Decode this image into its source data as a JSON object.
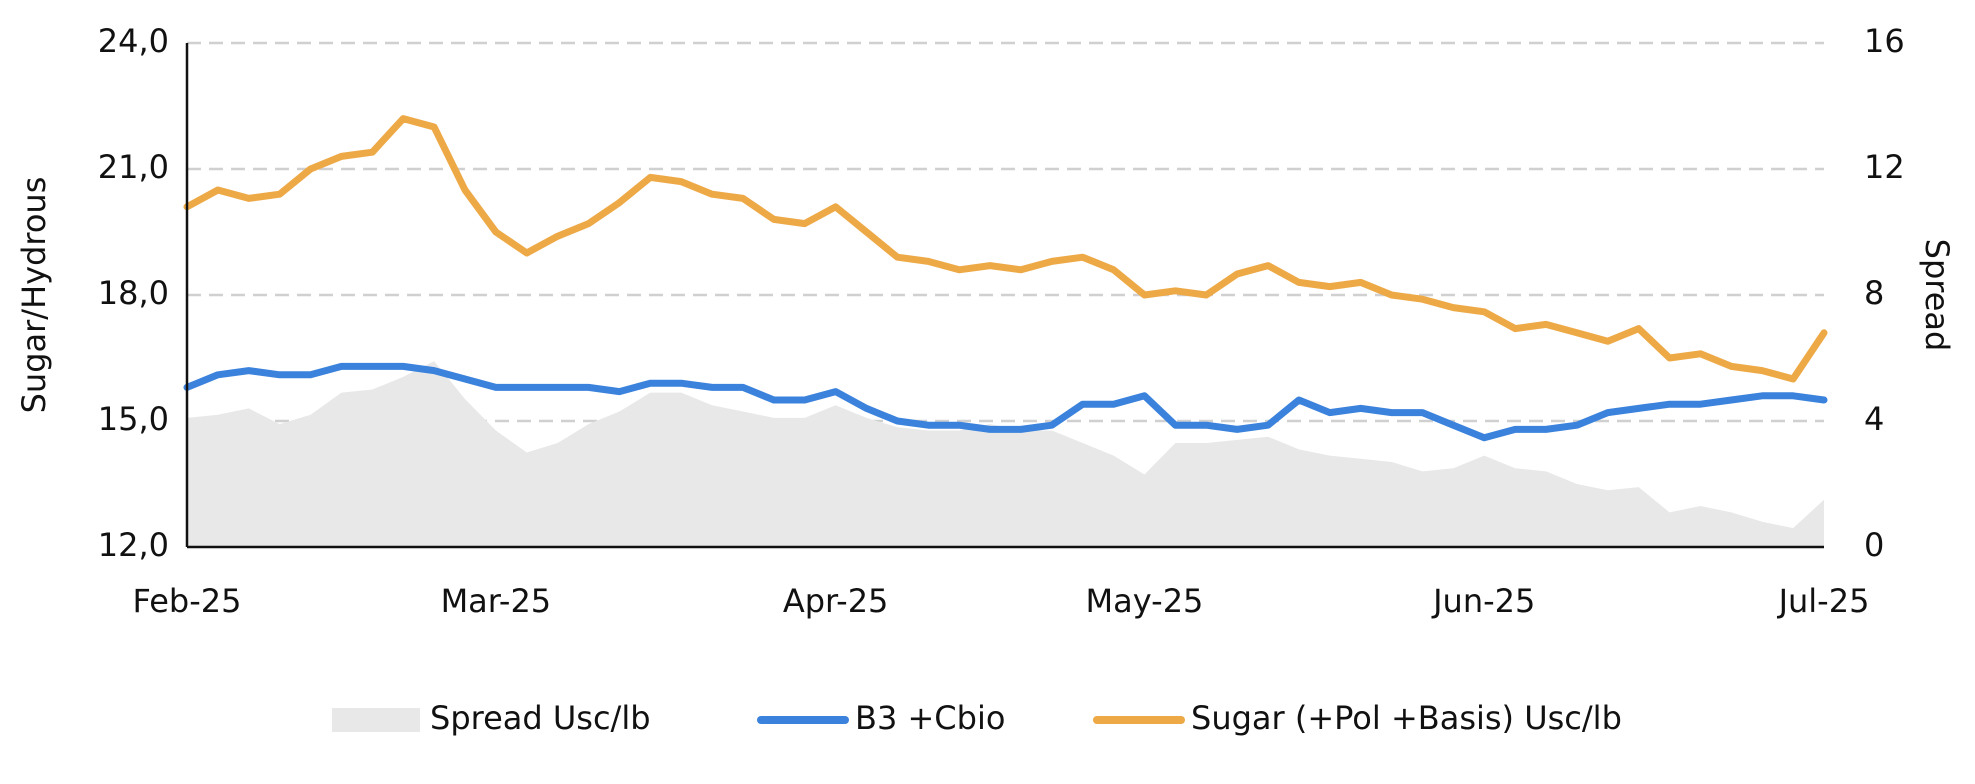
{
  "chart_data": {
    "type": "line",
    "y_label": "Sugar/Hydrous",
    "y2_label": "Spread",
    "categories": [
      "Feb-25",
      null,
      null,
      null,
      null,
      null,
      null,
      null,
      null,
      null,
      "Mar-25",
      null,
      null,
      null,
      null,
      null,
      null,
      null,
      null,
      null,
      null,
      "Apr-25",
      null,
      null,
      null,
      null,
      null,
      null,
      null,
      null,
      null,
      "May-25",
      null,
      null,
      null,
      null,
      null,
      null,
      null,
      null,
      null,
      null,
      "Jun-25",
      null,
      null,
      null,
      null,
      null,
      null,
      null,
      null,
      null,
      null,
      "Jul-25"
    ],
    "ylim": [
      12,
      24
    ],
    "yticks": [
      {
        "value": 12,
        "label": "12,0"
      },
      {
        "value": 15,
        "label": "15,0"
      },
      {
        "value": 18,
        "label": "18,0"
      },
      {
        "value": 21,
        "label": "21,0"
      },
      {
        "value": 24,
        "label": "24,0"
      }
    ],
    "y2lim": [
      0,
      16
    ],
    "y2ticks": [
      0,
      4,
      8,
      12,
      16
    ],
    "grid": true,
    "legend": "bottom",
    "series": [
      {
        "name": "Spread Usc/lb",
        "type": "area",
        "axis": "y2",
        "color": "#e8e8e8",
        "values": [
          4.1,
          4.2,
          4.4,
          3.9,
          4.2,
          4.9,
          5.0,
          5.4,
          5.9,
          4.7,
          3.7,
          3.0,
          3.3,
          3.9,
          4.3,
          4.9,
          4.9,
          4.5,
          4.3,
          4.1,
          4.1,
          4.5,
          4.1,
          3.8,
          3.7,
          3.7,
          3.9,
          3.7,
          3.7,
          3.3,
          2.9,
          2.3,
          3.3,
          3.3,
          3.4,
          3.5,
          3.1,
          2.9,
          2.8,
          2.7,
          2.4,
          2.5,
          2.9,
          2.5,
          2.4,
          2.0,
          1.8,
          1.9,
          1.1,
          1.3,
          1.1,
          0.8,
          0.6,
          1.5
        ]
      },
      {
        "name": "B3 +Cbio",
        "type": "line",
        "color": "#3b82dc",
        "values": [
          15.8,
          16.1,
          16.2,
          16.1,
          16.1,
          16.3,
          16.3,
          16.3,
          16.2,
          16.0,
          15.8,
          15.8,
          15.8,
          15.8,
          15.7,
          15.9,
          15.9,
          15.8,
          15.8,
          15.5,
          15.5,
          15.7,
          15.3,
          15.0,
          14.9,
          14.9,
          14.8,
          14.8,
          14.9,
          15.4,
          15.4,
          15.6,
          14.9,
          14.9,
          14.8,
          14.9,
          15.5,
          15.2,
          15.3,
          15.2,
          15.2,
          14.9,
          14.6,
          14.8,
          14.8,
          14.9,
          15.2,
          15.3,
          15.4,
          15.4,
          15.5,
          15.6,
          15.6,
          15.5
        ]
      },
      {
        "name": "Sugar (+Pol +Basis) Usc/lb",
        "type": "line",
        "color": "#eea947",
        "values": [
          20.1,
          20.5,
          20.3,
          20.4,
          21.0,
          21.3,
          21.4,
          22.2,
          22.0,
          20.5,
          19.5,
          19.0,
          19.4,
          19.7,
          20.2,
          20.8,
          20.7,
          20.4,
          20.3,
          19.8,
          19.7,
          20.1,
          19.5,
          18.9,
          18.8,
          18.6,
          18.7,
          18.6,
          18.8,
          18.9,
          18.6,
          18.0,
          18.1,
          18.0,
          18.5,
          18.7,
          18.3,
          18.2,
          18.3,
          18.0,
          17.9,
          17.7,
          17.6,
          17.2,
          17.3,
          17.1,
          16.9,
          17.2,
          16.5,
          16.6,
          16.3,
          16.2,
          16.0,
          17.1
        ]
      }
    ]
  }
}
